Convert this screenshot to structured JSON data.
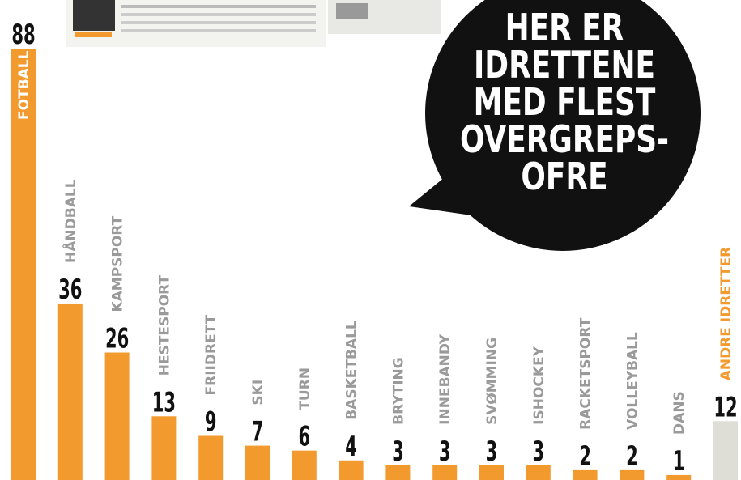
{
  "chart_data": {
    "type": "bar",
    "title_lines": [
      "HER ER",
      "IDRETTENE",
      "MED FLEST",
      "OVERGREPS-",
      "OFRE"
    ],
    "categories": [
      "FOTBALL",
      "HÅNDBALL",
      "KAMPSPORT",
      "HESTESPORT",
      "FRIIDRETT",
      "SKI",
      "TURN",
      "BASKETBALL",
      "BRYTING",
      "INNEBANDY",
      "SVØMMING",
      "ISHOCKEY",
      "RACKETSPORT",
      "VOLLEYBALL",
      "DANS",
      "ANDRE IDRETTER"
    ],
    "values": [
      88,
      36,
      26,
      13,
      9,
      7,
      6,
      4,
      3,
      3,
      3,
      3,
      2,
      2,
      1,
      12
    ],
    "colors": [
      "#f39a2e",
      "#f39a2e",
      "#f39a2e",
      "#f39a2e",
      "#f39a2e",
      "#f39a2e",
      "#f39a2e",
      "#f39a2e",
      "#f39a2e",
      "#f39a2e",
      "#f39a2e",
      "#f39a2e",
      "#f39a2e",
      "#f39a2e",
      "#f39a2e",
      "#deded6"
    ],
    "label_colors": [
      "#ffffff",
      "#9a9a9a",
      "#9a9a9a",
      "#9a9a9a",
      "#9a9a9a",
      "#9a9a9a",
      "#9a9a9a",
      "#9a9a9a",
      "#9a9a9a",
      "#9a9a9a",
      "#9a9a9a",
      "#9a9a9a",
      "#9a9a9a",
      "#9a9a9a",
      "#9a9a9a",
      "#f39a2e"
    ],
    "ylim": [
      0,
      88
    ]
  }
}
